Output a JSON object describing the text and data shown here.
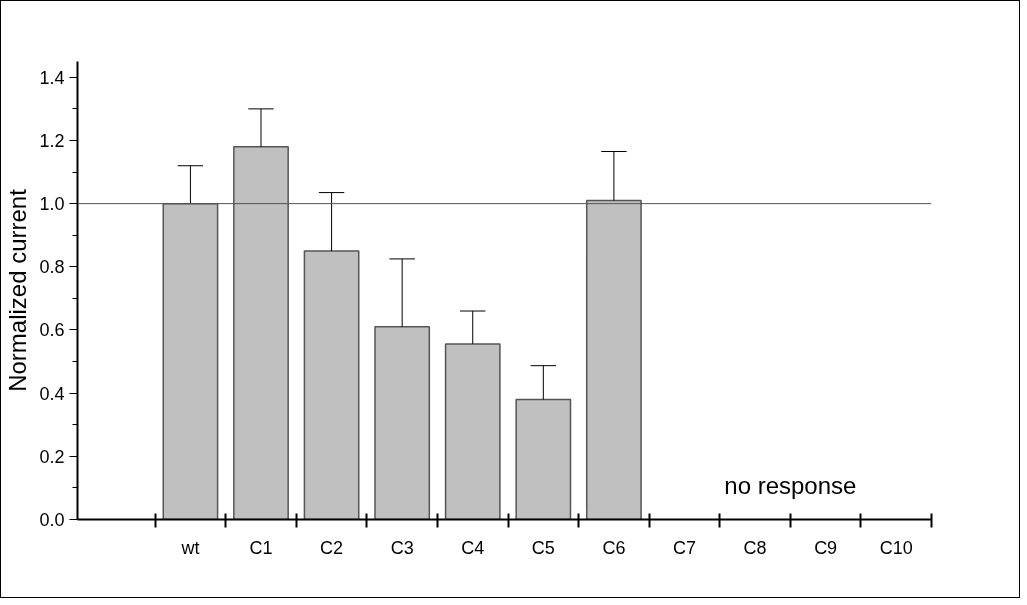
{
  "chart_data": {
    "type": "bar",
    "ylabel": "Normalized current",
    "categories": [
      "wt",
      "C1",
      "C2",
      "C3",
      "C4",
      "C5",
      "C6",
      "C7",
      "C8",
      "C9",
      "C10"
    ],
    "values": [
      1.0,
      1.18,
      0.85,
      0.61,
      0.556,
      0.38,
      1.01,
      null,
      null,
      null,
      null
    ],
    "color": "#c0c0c0",
    "errors": [
      [
        1.0,
        1.12
      ],
      [
        1.18,
        1.3
      ],
      [
        0.85,
        1.035
      ],
      [
        0.61,
        0.825
      ],
      [
        0.556,
        0.66
      ],
      [
        0.38,
        0.487
      ],
      [
        1.01,
        1.165
      ],
      null,
      null,
      null,
      null
    ],
    "ylim": [
      0,
      1.45
    ],
    "yticks": [
      {
        "value": 0,
        "label": "0.0"
      },
      {
        "value": 0.2,
        "label": "0.2"
      },
      {
        "value": 0.4,
        "label": "0.4"
      },
      {
        "value": 0.6,
        "label": "0.6"
      },
      {
        "value": 0.8,
        "label": "0.8"
      },
      {
        "value": 1.0,
        "label": "1.0"
      },
      {
        "value": 1.2,
        "label": "1.2"
      },
      {
        "value": 1.4,
        "label": "1.4"
      }
    ],
    "ref_lines": [
      {
        "axis": "y",
        "value": 1.0,
        "color": "#555555"
      }
    ],
    "annotations": [
      "no response"
    ],
    "grid": false
  }
}
